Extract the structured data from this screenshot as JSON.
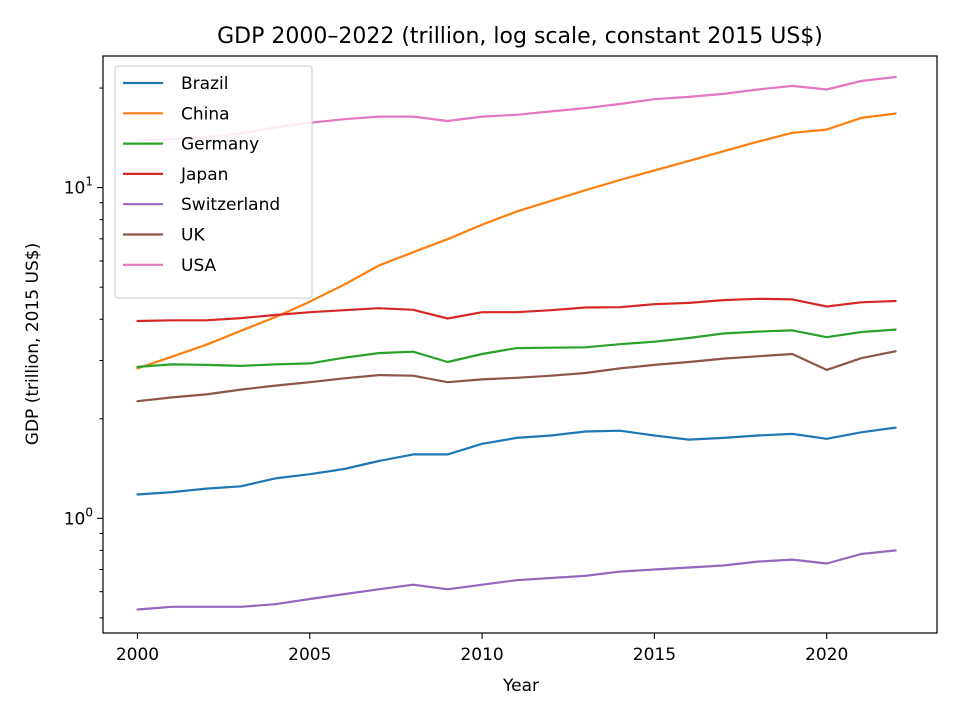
{
  "chart_data": {
    "type": "line",
    "title": "GDP 2000–2022 (trillion, log scale, constant 2015 US$)",
    "xlabel": "Year",
    "ylabel": "GDP (trillion, 2015 US$)",
    "x": [
      2000,
      2001,
      2002,
      2003,
      2004,
      2005,
      2006,
      2007,
      2008,
      2009,
      2010,
      2011,
      2012,
      2013,
      2014,
      2015,
      2016,
      2017,
      2018,
      2019,
      2020,
      2021,
      2022
    ],
    "xlim": [
      1999,
      2023.2
    ],
    "ylim": [
      0.45,
      25
    ],
    "yscale": "log",
    "x_ticks": [
      2000,
      2005,
      2010,
      2015,
      2020
    ],
    "x_tick_labels": [
      "2000",
      "2005",
      "2010",
      "2015",
      "2020"
    ],
    "y_major_ticks": [
      {
        "value": 1,
        "base": "10",
        "exp": "0"
      },
      {
        "value": 10,
        "base": "10",
        "exp": "1"
      }
    ],
    "y_minor_ticks": [
      0.5,
      0.6,
      0.7,
      0.8,
      0.9,
      2,
      3,
      4,
      5,
      6,
      7,
      8,
      9,
      20
    ],
    "grid": false,
    "legend_position": "top-left",
    "series": [
      {
        "name": "Brazil",
        "color": "#1f77b4",
        "values": [
          1.18,
          1.2,
          1.23,
          1.25,
          1.32,
          1.36,
          1.41,
          1.49,
          1.56,
          1.56,
          1.68,
          1.75,
          1.78,
          1.83,
          1.84,
          1.78,
          1.73,
          1.75,
          1.78,
          1.8,
          1.74,
          1.82,
          1.88
        ]
      },
      {
        "name": "China",
        "color": "#ff7f0e",
        "values": [
          2.84,
          3.08,
          3.35,
          3.69,
          4.06,
          4.52,
          5.09,
          5.81,
          6.38,
          6.98,
          7.73,
          8.46,
          9.12,
          9.82,
          10.54,
          11.27,
          12.04,
          12.88,
          13.77,
          14.65,
          14.98,
          16.25,
          16.75
        ]
      },
      {
        "name": "Germany",
        "color": "#2ca02c",
        "values": [
          2.87,
          2.92,
          2.91,
          2.89,
          2.92,
          2.94,
          3.06,
          3.16,
          3.19,
          2.97,
          3.14,
          3.27,
          3.28,
          3.29,
          3.36,
          3.42,
          3.51,
          3.62,
          3.67,
          3.7,
          3.53,
          3.66,
          3.72
        ]
      },
      {
        "name": "Japan",
        "color": "#d62728",
        "values": [
          3.95,
          3.97,
          3.97,
          4.03,
          4.12,
          4.2,
          4.26,
          4.32,
          4.27,
          4.02,
          4.2,
          4.2,
          4.26,
          4.34,
          4.35,
          4.44,
          4.48,
          4.57,
          4.61,
          4.59,
          4.37,
          4.5,
          4.54
        ]
      },
      {
        "name": "Switzerland",
        "color": "#9467bd",
        "values": [
          0.53,
          0.54,
          0.54,
          0.54,
          0.55,
          0.57,
          0.59,
          0.61,
          0.63,
          0.61,
          0.63,
          0.65,
          0.66,
          0.67,
          0.69,
          0.7,
          0.71,
          0.72,
          0.74,
          0.75,
          0.73,
          0.78,
          0.8
        ]
      },
      {
        "name": "UK",
        "color": "#8c564b",
        "values": [
          2.26,
          2.32,
          2.37,
          2.45,
          2.52,
          2.58,
          2.65,
          2.71,
          2.7,
          2.58,
          2.63,
          2.66,
          2.7,
          2.75,
          2.84,
          2.91,
          2.97,
          3.04,
          3.09,
          3.14,
          2.81,
          3.05,
          3.2
        ]
      },
      {
        "name": "USA",
        "color": "#e377c2",
        "values": [
          13.9,
          14.0,
          14.2,
          14.6,
          15.2,
          15.7,
          16.1,
          16.4,
          16.4,
          15.9,
          16.4,
          16.6,
          17.0,
          17.4,
          17.9,
          18.5,
          18.8,
          19.2,
          19.8,
          20.3,
          19.8,
          21.0,
          21.6
        ]
      }
    ]
  }
}
